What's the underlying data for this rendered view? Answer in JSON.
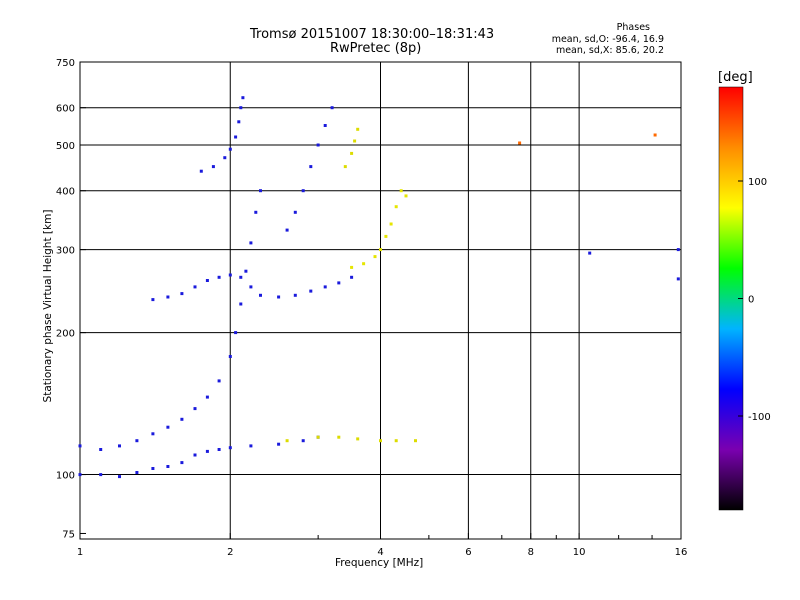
{
  "title": "Tromsø 20151007 18:30:00–18:31:43",
  "subtitle": "RwPretec (8p)",
  "stats": {
    "title": "Phases",
    "o_line": "mean, sd,O: -96.4, 16.9",
    "x_line": "mean, sd,X: 85.6, 20.2"
  },
  "chart_data": {
    "type": "scatter",
    "title": "Tromsø 20151007 18:30:00–18:31:43",
    "xlabel": "Frequency [MHz]",
    "ylabel": "Stationary phase Virtual Height [km]",
    "xscale": "log",
    "yscale": "log",
    "xlim": [
      1,
      16
    ],
    "ylim": [
      73,
      750
    ],
    "grid": true,
    "x_ticks": [
      1,
      2,
      4,
      6,
      8,
      10,
      16
    ],
    "x_tick_labels": [
      "1",
      "2",
      "4",
      "6",
      "8",
      "10",
      "16"
    ],
    "y_ticks": [
      75,
      100,
      200,
      300,
      400,
      500,
      600,
      750
    ],
    "y_tick_labels": [
      "75",
      "100",
      "200",
      "300",
      "400",
      "500",
      "600",
      "750"
    ],
    "colorbar": {
      "label": "[deg]",
      "range": [
        -180,
        180
      ],
      "ticks": [
        -100,
        0,
        100
      ],
      "tick_labels": [
        "-100",
        "0",
        "100"
      ],
      "colors": [
        "#000000",
        "#7a00b0",
        "#0000ff",
        "#00b4ff",
        "#00ff00",
        "#ffff00",
        "#ff8c00",
        "#ff0000"
      ]
    },
    "series": [
      {
        "color": "#1a1adc",
        "points": [
          [
            1.0,
            100
          ],
          [
            1.1,
            100
          ],
          [
            1.2,
            99
          ],
          [
            1.3,
            101
          ],
          [
            1.4,
            103
          ],
          [
            1.5,
            104
          ],
          [
            1.6,
            106
          ],
          [
            1.7,
            110
          ],
          [
            1.8,
            112
          ],
          [
            1.9,
            113
          ],
          [
            2.0,
            114
          ],
          [
            2.2,
            115
          ],
          [
            2.5,
            116
          ],
          [
            2.8,
            118
          ],
          [
            3.0,
            120
          ]
        ]
      },
      {
        "color": "#1a1adc",
        "points": [
          [
            1.0,
            115
          ],
          [
            1.1,
            113
          ],
          [
            1.2,
            115
          ],
          [
            1.3,
            118
          ],
          [
            1.4,
            122
          ],
          [
            1.5,
            126
          ],
          [
            1.6,
            131
          ],
          [
            1.7,
            138
          ],
          [
            1.8,
            146
          ],
          [
            1.9,
            158
          ],
          [
            2.0,
            178
          ],
          [
            2.05,
            200
          ],
          [
            2.1,
            230
          ],
          [
            2.15,
            270
          ],
          [
            2.2,
            310
          ],
          [
            2.25,
            360
          ],
          [
            2.3,
            400
          ]
        ]
      },
      {
        "color": "#1a1adc",
        "points": [
          [
            1.4,
            235
          ],
          [
            1.5,
            238
          ],
          [
            1.6,
            242
          ],
          [
            1.7,
            250
          ],
          [
            1.8,
            258
          ],
          [
            1.9,
            262
          ],
          [
            2.0,
            265
          ],
          [
            2.1,
            262
          ],
          [
            2.2,
            250
          ],
          [
            2.3,
            240
          ],
          [
            2.5,
            238
          ],
          [
            2.7,
            240
          ],
          [
            2.9,
            245
          ],
          [
            3.1,
            250
          ],
          [
            3.3,
            255
          ],
          [
            3.5,
            262
          ]
        ]
      },
      {
        "color": "#1a1adc",
        "points": [
          [
            1.75,
            440
          ],
          [
            1.85,
            450
          ],
          [
            1.95,
            470
          ],
          [
            2.0,
            490
          ],
          [
            2.05,
            520
          ],
          [
            2.08,
            560
          ],
          [
            2.1,
            600
          ],
          [
            2.12,
            630
          ]
        ]
      },
      {
        "color": "#1a1adc",
        "points": [
          [
            2.6,
            330
          ],
          [
            2.7,
            360
          ],
          [
            2.8,
            400
          ],
          [
            2.9,
            450
          ],
          [
            3.0,
            500
          ],
          [
            3.1,
            550
          ],
          [
            3.2,
            600
          ]
        ]
      },
      {
        "color": "#dcdc00",
        "points": [
          [
            2.6,
            118
          ],
          [
            3.0,
            120
          ],
          [
            3.3,
            120
          ],
          [
            3.6,
            119
          ],
          [
            4.0,
            118
          ],
          [
            4.3,
            118
          ],
          [
            4.7,
            118
          ]
        ]
      },
      {
        "color": "#e6e600",
        "points": [
          [
            3.5,
            275
          ],
          [
            3.7,
            280
          ],
          [
            3.9,
            290
          ],
          [
            4.0,
            300
          ],
          [
            4.1,
            320
          ],
          [
            4.2,
            340
          ],
          [
            4.3,
            370
          ],
          [
            4.4,
            400
          ],
          [
            4.5,
            390
          ]
        ]
      },
      {
        "color": "#dcdc00",
        "points": [
          [
            3.4,
            450
          ],
          [
            3.5,
            480
          ],
          [
            3.55,
            510
          ],
          [
            3.6,
            540
          ]
        ]
      },
      {
        "color": "#ff6a00",
        "points": [
          [
            7.6,
            505
          ],
          [
            14.2,
            525
          ]
        ]
      },
      {
        "color": "#1a1adc",
        "points": [
          [
            10.5,
            295
          ],
          [
            15.8,
            300
          ],
          [
            15.8,
            260
          ]
        ]
      }
    ]
  }
}
